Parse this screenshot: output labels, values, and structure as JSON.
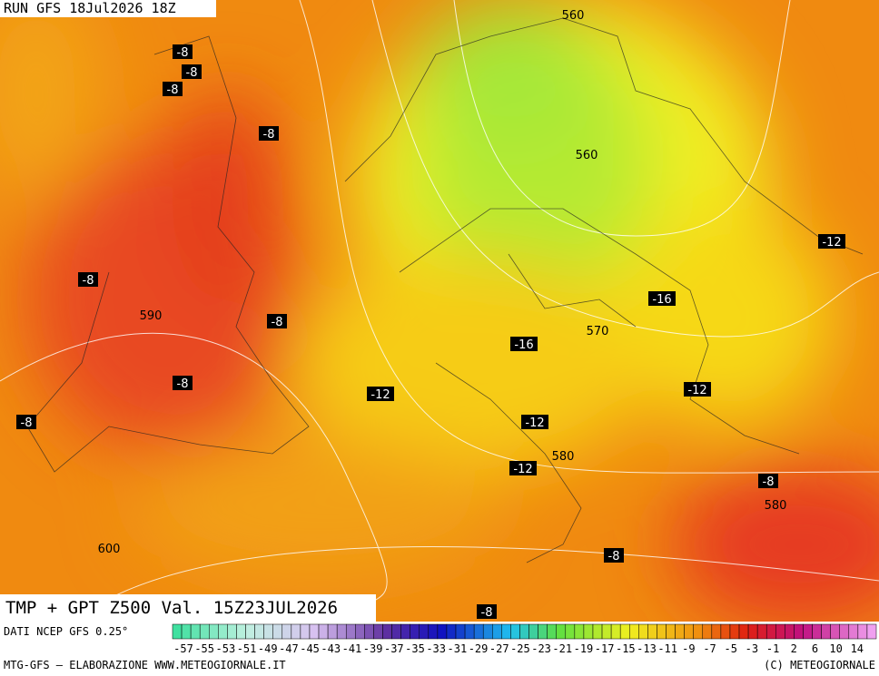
{
  "header": {
    "run": "RUN GFS 18Jul2026 18Z"
  },
  "map": {
    "title": "TMP + GPT Z500 Val. 15Z23JUL2026",
    "labels": [
      "-8",
      "-8",
      "-8",
      "-8",
      "560",
      "560",
      "-12",
      "-8",
      "590",
      "-8",
      "-16",
      "-16",
      "570",
      "-8",
      "-12",
      "-12",
      "-8",
      "-12",
      "580",
      "-12",
      "-8",
      "580",
      "600",
      "-8",
      "-8"
    ]
  },
  "legend": {
    "source": "DATI NCEP GFS 0.25°",
    "ticks": [
      "-57",
      "-55",
      "-53",
      "-51",
      "-49",
      "-47",
      "-45",
      "-43",
      "-41",
      "-39",
      "-37",
      "-35",
      "-33",
      "-31",
      "-29",
      "-27",
      "-25",
      "-23",
      "-21",
      "-19",
      "-17",
      "-15",
      "-13",
      "-11",
      "-9",
      "-7",
      "-5",
      "-3",
      "-1",
      "2",
      "6",
      "10",
      "14"
    ]
  },
  "footer": {
    "credit": "MTG-GFS – ELABORAZIONE WWW.METEOGIORNALE.IT",
    "copyright": "(C) METEOGIORNALE"
  }
}
